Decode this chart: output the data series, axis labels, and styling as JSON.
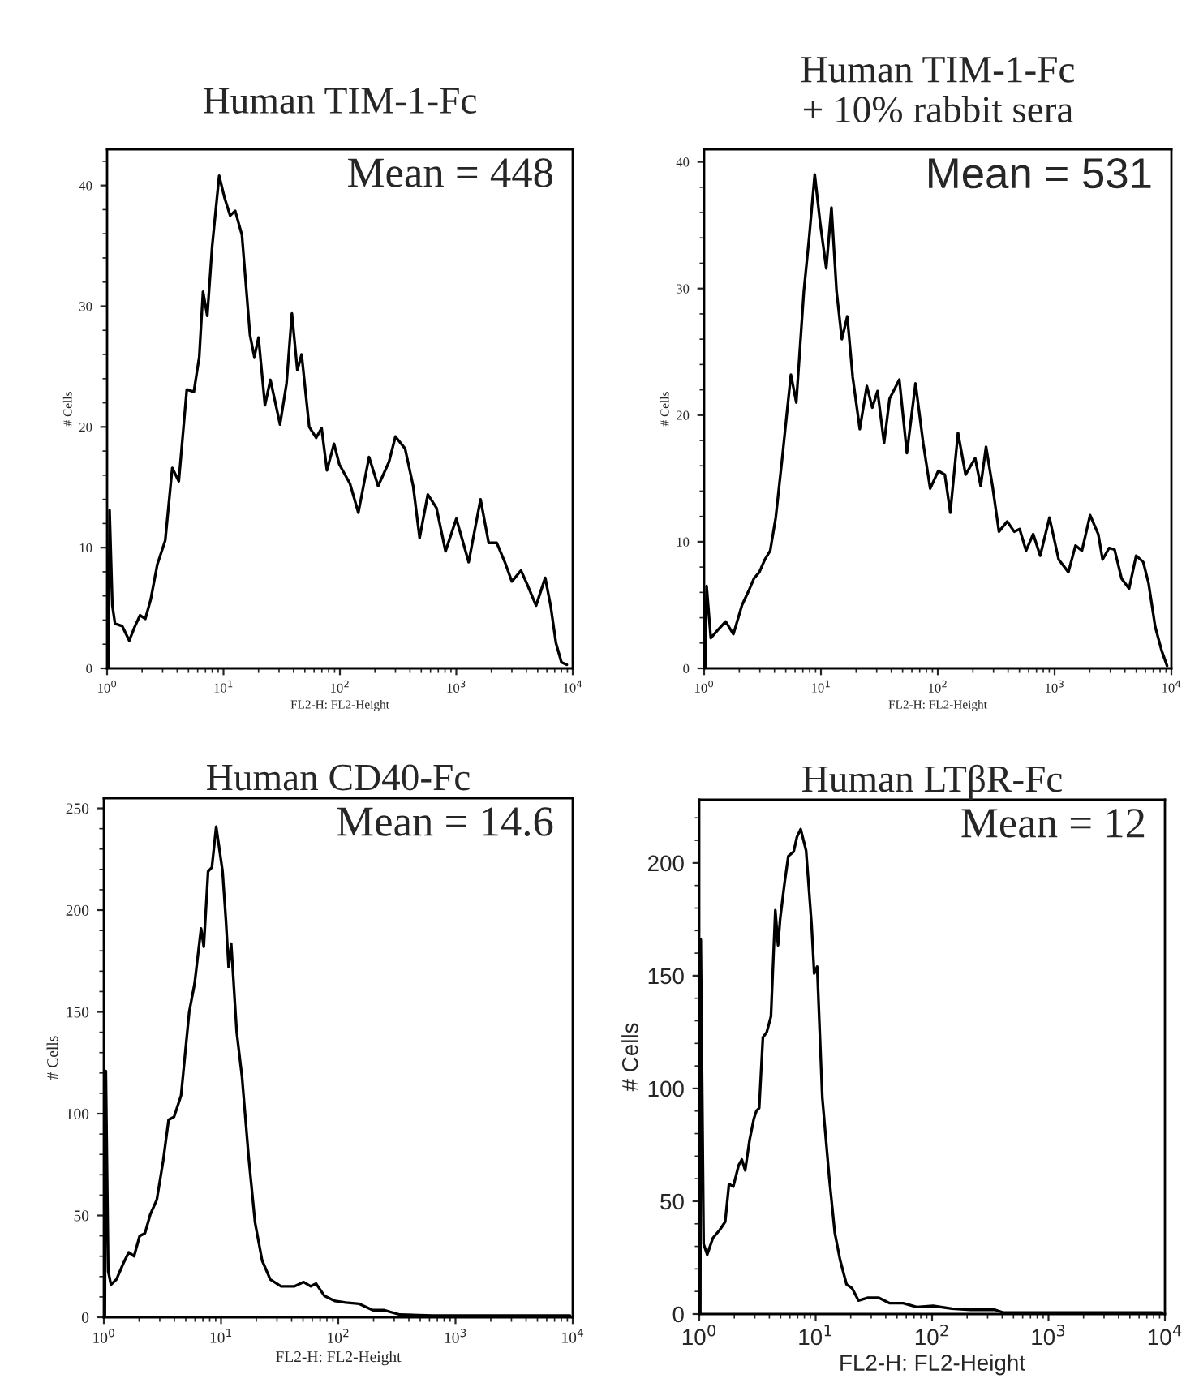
{
  "chart_data": [
    {
      "type": "line",
      "title": "Human TIM-1-Fc",
      "xlabel": "FL2-H: FL2-Height",
      "ylabel": "# Cells",
      "annotations": [
        "Mean = 448"
      ],
      "log": "x",
      "xlim": [
        1,
        10000
      ],
      "xticks": [
        {
          "value": 1,
          "label": "10$^{0}$"
        },
        {
          "value": 10,
          "label": "10$^{1}$"
        },
        {
          "value": 100,
          "label": "10$^{2}$"
        },
        {
          "value": 1000,
          "label": "10$^{3}$"
        },
        {
          "value": 10000,
          "label": "10$^{4}$"
        }
      ],
      "ylim": [
        0,
        43
      ],
      "yticks": [
        0,
        10,
        20,
        30,
        40
      ],
      "x": [
        1.03,
        1.05,
        1.11,
        1.17,
        1.35,
        1.55,
        1.72,
        1.92,
        2.13,
        2.37,
        2.7,
        3.16,
        3.63,
        4.13,
        4.84,
        5.56,
        6.19,
        6.67,
        7.26,
        8.0,
        9.18,
        10.2,
        11.4,
        12.6,
        14.4,
        16.9,
        18.4,
        20.0,
        22.7,
        25.3,
        30.6,
        34.8,
        38.7,
        43.1,
        46.9,
        54.5,
        62.5,
        69.6,
        77.4,
        89,
        98.9,
        122,
        144,
        178,
        213,
        264,
        300,
        363,
        426,
        484,
        569,
        675,
        808,
        1000,
        1277,
        1615,
        1896,
        2223,
        2612,
        3000,
        3597,
        4130,
        4842,
        5803,
        6457,
        7178,
        7998,
        8891
      ],
      "series": [
        {
          "color": "#000000",
          "values": [
            0,
            13.1,
            5.2,
            3.7,
            3.5,
            2.3,
            3.4,
            4.4,
            4.1,
            5.7,
            8.6,
            10.6,
            16.6,
            15.5,
            23.1,
            22.9,
            25.8,
            31.2,
            29.2,
            35,
            40.8,
            39,
            37.5,
            37.9,
            35.9,
            27.6,
            25.8,
            27.4,
            21.8,
            23.9,
            20.2,
            23.6,
            29.4,
            24.7,
            26,
            20,
            19.1,
            19.9,
            16.4,
            18.6,
            16.9,
            15.3,
            12.9,
            17.5,
            15.1,
            17.1,
            19.2,
            18.2,
            15.1,
            10.8,
            14.4,
            13.3,
            9.7,
            12.4,
            8.8,
            14,
            10.4,
            10.4,
            8.8,
            7.2,
            8.1,
            6.8,
            5.2,
            7.5,
            5.2,
            2.1,
            0.5,
            0.3
          ]
        }
      ]
    },
    {
      "type": "line",
      "title": "Human TIM-1-Fc\n+ 10% rabbit sera",
      "xlabel": "FL2-H: FL2-Height",
      "ylabel": "# Cells",
      "annotations": [
        "Mean = 531"
      ],
      "log": "x",
      "xlim": [
        1,
        10000
      ],
      "xticks": [
        {
          "value": 1,
          "label": "10$^{0}$"
        },
        {
          "value": 10,
          "label": "10$^{1}$"
        },
        {
          "value": 100,
          "label": "10$^{2}$"
        },
        {
          "value": 1000,
          "label": "10$^{3}$"
        },
        {
          "value": 10000,
          "label": "10$^{4}$"
        }
      ],
      "ylim": [
        0,
        41
      ],
      "yticks": [
        0,
        10,
        20,
        30,
        40
      ],
      "x": [
        1.02,
        1.05,
        1.14,
        1.33,
        1.53,
        1.78,
        2.11,
        2.4,
        2.67,
        2.97,
        3.31,
        3.68,
        4.1,
        4.66,
        5.53,
        6.15,
        7.14,
        7.94,
        8.85,
        9.84,
        11.1,
        12.3,
        13.6,
        15.1,
        16.8,
        18.7,
        21.5,
        24.7,
        27.5,
        30.5,
        34.7,
        38.7,
        46.9,
        54.4,
        64.5,
        75.0,
        86.1,
        101,
        115,
        128,
        149,
        173,
        209,
        233,
        259,
        294,
        334,
        393,
        451,
        502,
        570,
        656,
        753,
        904,
        1083,
        1313,
        1510,
        1715,
        2014,
        2366,
        2576,
        2926,
        3258,
        3743,
        4346,
        4990,
        5737,
        6383,
        7261,
        8250,
        9180
      ],
      "series": [
        {
          "color": "#000000",
          "values": [
            0,
            6.5,
            2.4,
            3.1,
            3.7,
            2.7,
            5,
            6.1,
            7.1,
            7.6,
            8.6,
            9.3,
            11.9,
            16.6,
            23.2,
            21,
            29.8,
            34.1,
            39,
            35.2,
            31.6,
            36.4,
            29.8,
            26,
            27.8,
            23,
            18.9,
            22.3,
            20.6,
            21.9,
            17.8,
            21.3,
            22.8,
            17,
            22.5,
            17.8,
            14.2,
            15.6,
            15.3,
            12.3,
            18.6,
            15.3,
            16.6,
            14.4,
            17.5,
            14.4,
            10.8,
            11.6,
            10.8,
            11,
            9.3,
            10.6,
            8.9,
            11.9,
            8.6,
            7.6,
            9.7,
            9.3,
            12.1,
            10.6,
            8.6,
            9.5,
            9.4,
            7.1,
            6.3,
            8.9,
            8.4,
            6.7,
            3.3,
            1.4,
            0.2
          ]
        }
      ]
    },
    {
      "type": "line",
      "title": "Human CD40-Fc",
      "xlabel": "FL2-H: FL2-Height",
      "ylabel": "# Cells",
      "annotations": [
        "Mean = 14.6"
      ],
      "log": "x",
      "xlim": [
        1,
        10000
      ],
      "xticks": [
        {
          "value": 1,
          "label": "10$^{0}$"
        },
        {
          "value": 10,
          "label": "10$^{1}$"
        },
        {
          "value": 100,
          "label": "10$^{2}$"
        },
        {
          "value": 1000,
          "label": "10$^{3}$"
        },
        {
          "value": 10000,
          "label": "10$^{4}$"
        }
      ],
      "ylim": [
        0,
        255
      ],
      "yticks": [
        0,
        50,
        100,
        150,
        200,
        250
      ],
      "x": [
        1.02,
        1.04,
        1.09,
        1.15,
        1.28,
        1.47,
        1.63,
        1.81,
        2.02,
        2.24,
        2.49,
        2.83,
        3.21,
        3.57,
        3.97,
        4.56,
        5.35,
        5.95,
        6.75,
        7.12,
        7.75,
        8.35,
        9.09,
        10.3,
        11.0,
        11.6,
        12.2,
        13.6,
        15.1,
        17.2,
        19.5,
        22.4,
        26.3,
        32.5,
        42.4,
        50.7,
        58.2,
        64.7,
        75.9,
        93.8,
        116,
        151,
        197,
        244,
        335,
        634,
        1832,
        9480
      ],
      "series": [
        {
          "color": "#000000",
          "values": [
            0,
            121,
            22.6,
            16,
            18.6,
            26.6,
            31.9,
            30,
            39.9,
            41.2,
            50.5,
            57.7,
            77,
            97,
            98.4,
            109,
            150,
            164,
            191,
            182,
            219,
            221,
            241,
            219,
            195,
            172,
            183.5,
            140,
            118,
            78.5,
            46.5,
            27.9,
            18.6,
            15.2,
            15.2,
            17.3,
            15.2,
            16.5,
            10.6,
            8,
            7.2,
            6.6,
            3.5,
            3.5,
            1.3,
            0.8,
            0.8,
            0.8
          ]
        }
      ]
    },
    {
      "type": "line",
      "title": "Human LTβR-Fc",
      "xlabel": "FL2-H: FL2-Height",
      "ylabel": "# Cells",
      "annotations": [
        "Mean = 12"
      ],
      "log": "x",
      "xlim": [
        1,
        10000
      ],
      "xticks": [
        {
          "value": 1,
          "label": "10$^{0}$"
        },
        {
          "value": 10,
          "label": "10$^{1}$"
        },
        {
          "value": 100,
          "label": "10$^{2}$"
        },
        {
          "value": 1000,
          "label": "10$^{3}$"
        },
        {
          "value": 10000,
          "label": "10$^{4}$"
        }
      ],
      "ylim": [
        0,
        228
      ],
      "yticks": [
        0,
        50,
        100,
        150,
        200
      ],
      "x": [
        1.02,
        1.03,
        1.09,
        1.17,
        1.31,
        1.5,
        1.67,
        1.8,
        1.96,
        2.18,
        2.32,
        2.48,
        2.7,
        2.94,
        3.1,
        3.27,
        3.52,
        3.8,
        4.13,
        4.5,
        4.75,
        4.96,
        5.4,
        5.82,
        6.47,
        6.9,
        7.43,
        8.27,
        9.21,
        9.71,
        10.3,
        11.4,
        13.1,
        14.6,
        16.2,
        18.4,
        20.5,
        23.3,
        28.2,
        34.9,
        43.3,
        56.5,
        73.8,
        102,
        148,
        214,
        347,
        407,
        9480
      ],
      "series": [
        {
          "color": "#000000",
          "values": [
            0,
            166,
            31,
            26.4,
            33.7,
            37.3,
            40.9,
            57.7,
            56.5,
            66,
            68.5,
            63.7,
            76.9,
            86.5,
            90.1,
            91.3,
            122.6,
            125,
            132,
            179,
            163.5,
            175.5,
            191,
            203,
            205,
            211.5,
            215,
            205.5,
            173,
            151,
            154,
            96,
            60,
            36,
            24,
            13.2,
            11.5,
            6,
            7.2,
            7.2,
            4.8,
            4.8,
            3.1,
            3.6,
            2.4,
            1.9,
            1.9,
            0.7,
            0.7
          ]
        }
      ]
    }
  ]
}
